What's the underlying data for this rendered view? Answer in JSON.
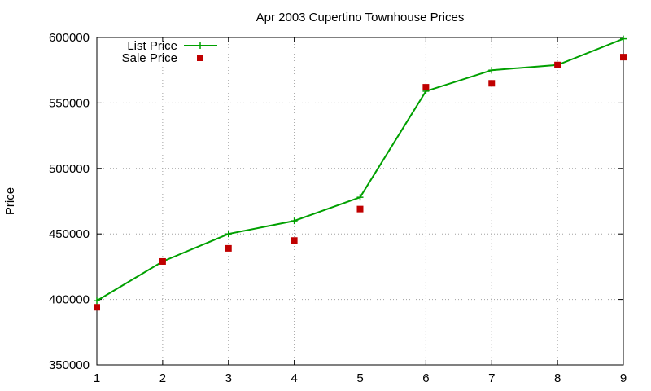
{
  "chart_data": {
    "type": "line",
    "title": "Apr 2003 Cupertino Townhouse Prices",
    "xlabel": "",
    "ylabel": "Price",
    "x": [
      1,
      2,
      3,
      4,
      5,
      6,
      7,
      8,
      9
    ],
    "xlim": [
      1,
      9
    ],
    "ylim": [
      350000,
      600000
    ],
    "xticks": [
      "1",
      "2",
      "3",
      "4",
      "5",
      "6",
      "7",
      "8",
      "9"
    ],
    "yticks": [
      "350000",
      "400000",
      "450000",
      "500000",
      "550000",
      "600000"
    ],
    "grid": true,
    "legend_position": "top-left",
    "series": [
      {
        "name": "List Price",
        "style": "line+cross",
        "color": "#00a000",
        "values": [
          399000,
          429000,
          450000,
          460000,
          478000,
          559000,
          575000,
          579000,
          599000
        ]
      },
      {
        "name": "Sale Price",
        "style": "square-points",
        "color": "#c00000",
        "values": [
          394000,
          429000,
          439000,
          445000,
          469000,
          562000,
          565000,
          579000,
          585000
        ]
      }
    ]
  }
}
